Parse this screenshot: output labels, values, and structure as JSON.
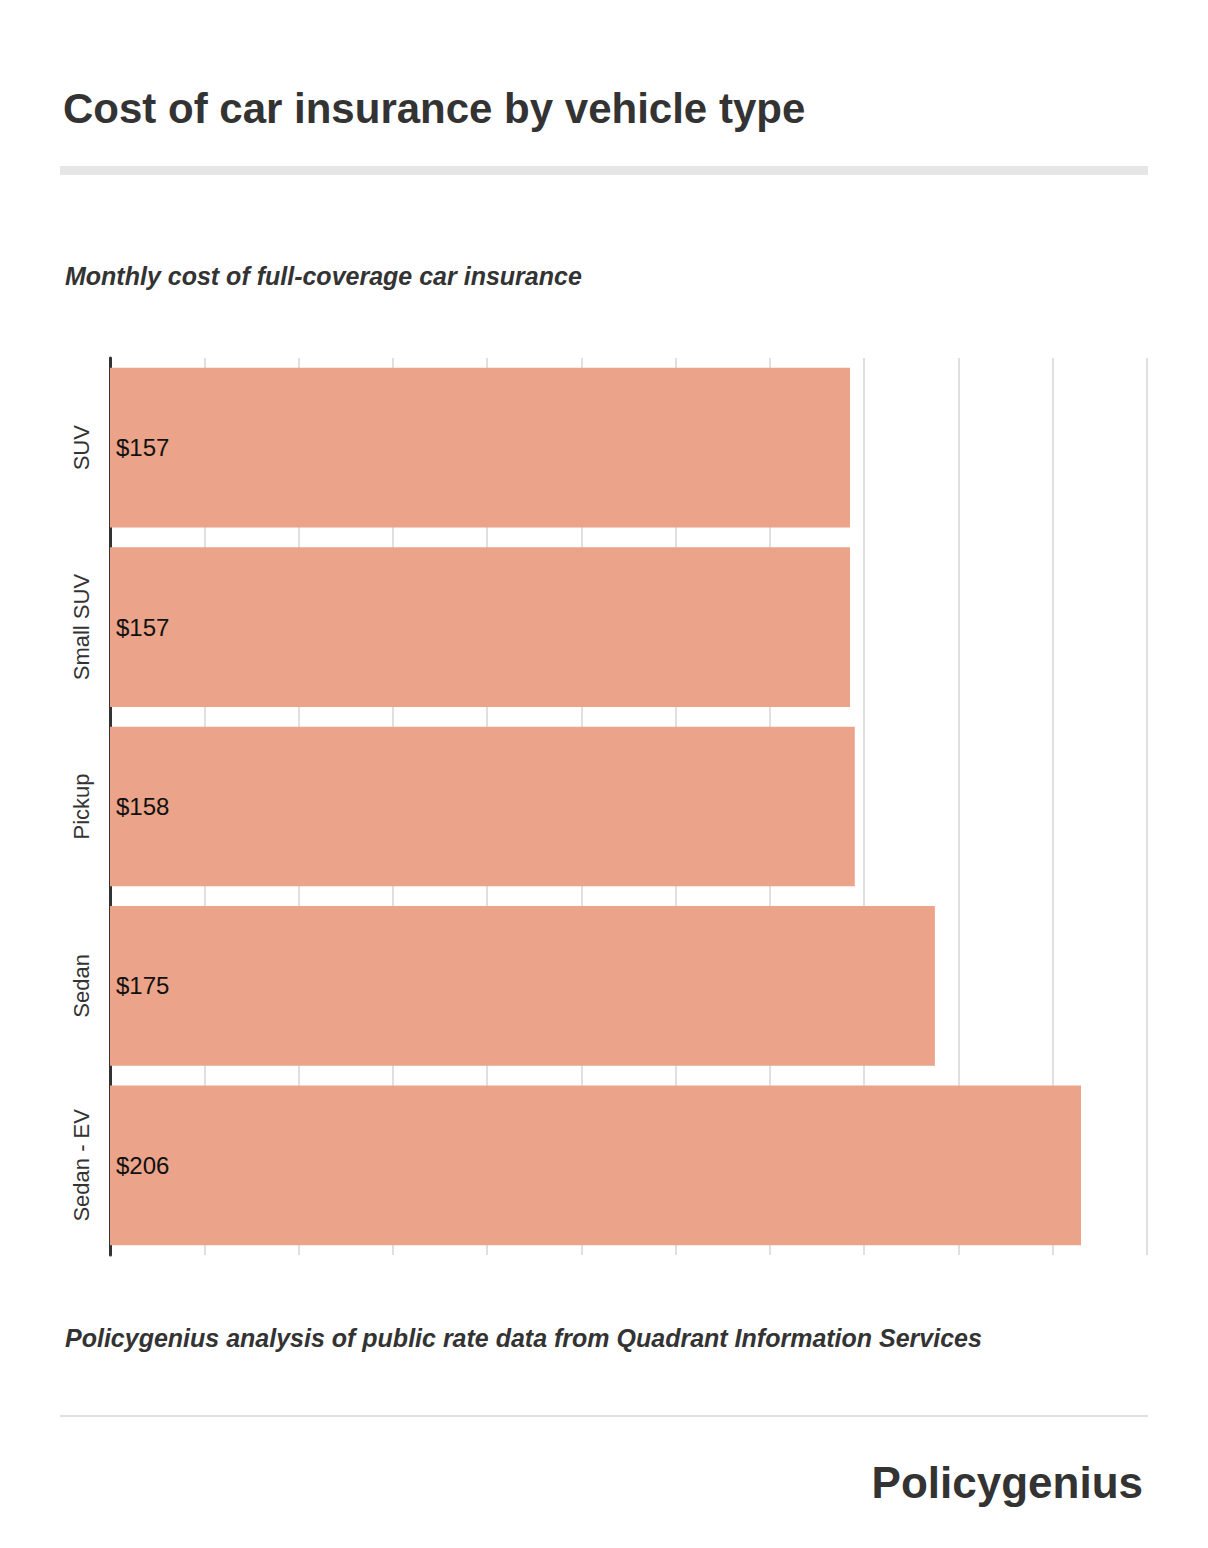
{
  "chart_data": {
    "type": "bar",
    "orientation": "horizontal",
    "title": "Cost of car insurance by vehicle type",
    "subtitle": "Monthly cost of full-coverage car insurance",
    "source": "Policygenius analysis of public rate data from Quadrant Information Services",
    "logo": "Policygenius",
    "categories": [
      "SUV",
      "Small SUV",
      "Pickup",
      "Sedan",
      "Sedan - EV"
    ],
    "values": [
      157,
      157,
      158,
      175,
      206
    ],
    "value_labels": [
      "$157",
      "$157",
      "$158",
      "$175",
      "$206"
    ],
    "color": "#eba389",
    "xlim": [
      0,
      220
    ],
    "xticks": [
      0,
      20,
      40,
      60,
      80,
      100,
      120,
      140,
      160,
      180,
      200,
      220
    ],
    "grid": true,
    "data_labels": true,
    "tick_labels": "y"
  }
}
